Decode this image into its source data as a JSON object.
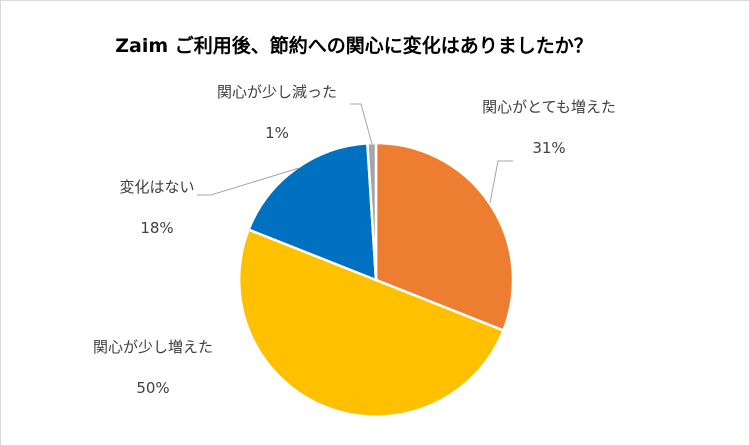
{
  "chart_data": {
    "type": "pie",
    "title": "Zaim ご利用後、節約への関心に変化はありましたか？",
    "start_angle_deg": 0,
    "direction": "clockwise",
    "slices": [
      {
        "label": "関心がとても増えた",
        "value": 31,
        "value_label": "31%",
        "color": "#ED7D31"
      },
      {
        "label": "関心が少し増えた",
        "value": 50,
        "value_label": "50%",
        "color": "#FFC000"
      },
      {
        "label": "変化はない",
        "value": 18,
        "value_label": "18%",
        "color": "#0070C0"
      },
      {
        "label": "関心が少し減った",
        "value": 1,
        "value_label": "1%",
        "color": "#A5A5A5"
      }
    ],
    "legend": "none",
    "label_style": "category name and percentage outside slices with leader lines"
  }
}
